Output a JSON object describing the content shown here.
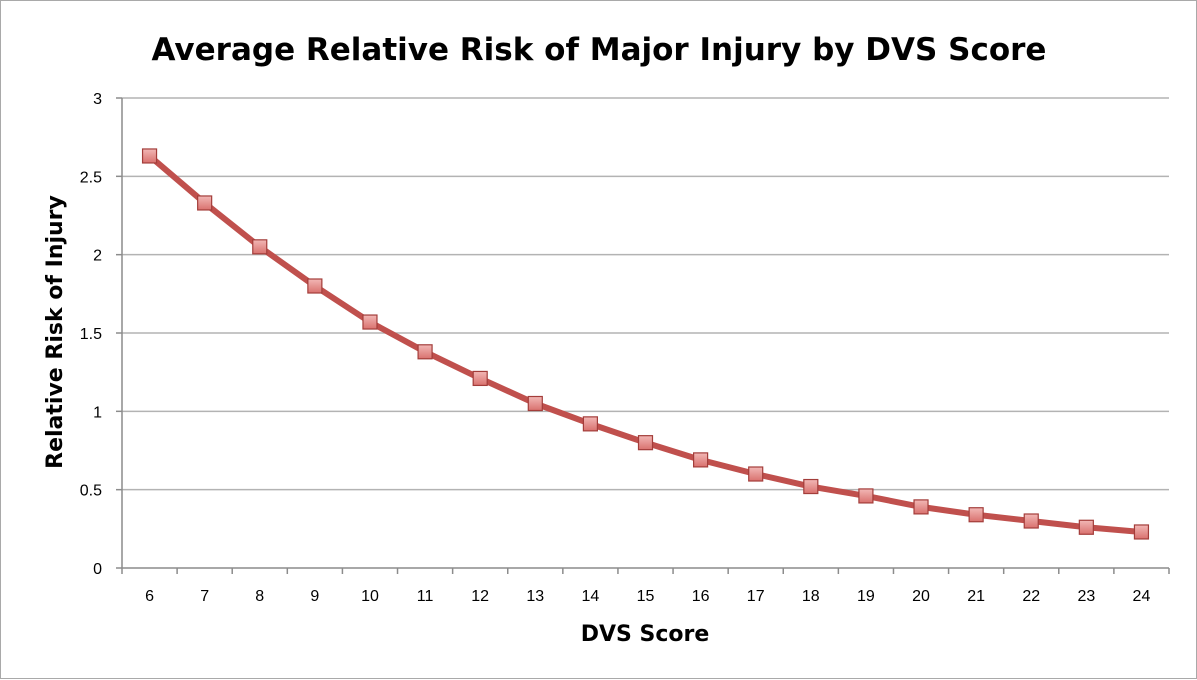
{
  "chart_data": {
    "type": "line",
    "title": "Average Relative Risk of Major Injury by DVS Score",
    "xlabel": "DVS Score",
    "ylabel": "Relative Risk of Injury",
    "x": [
      6,
      7,
      8,
      9,
      10,
      11,
      12,
      13,
      14,
      15,
      16,
      17,
      18,
      19,
      20,
      21,
      22,
      23,
      24
    ],
    "series": [
      {
        "values": [
          2.63,
          2.33,
          2.05,
          1.8,
          1.57,
          1.38,
          1.21,
          1.05,
          0.92,
          0.8,
          0.69,
          0.6,
          0.52,
          0.46,
          0.39,
          0.34,
          0.3,
          0.26,
          0.23
        ],
        "color": "#c0504d",
        "marker": "square"
      }
    ],
    "ylim": [
      0,
      3
    ],
    "yticks": [
      "0",
      "0.5",
      "1",
      "1.5",
      "2",
      "2.5",
      "3"
    ],
    "grid": true,
    "legend": "none"
  }
}
